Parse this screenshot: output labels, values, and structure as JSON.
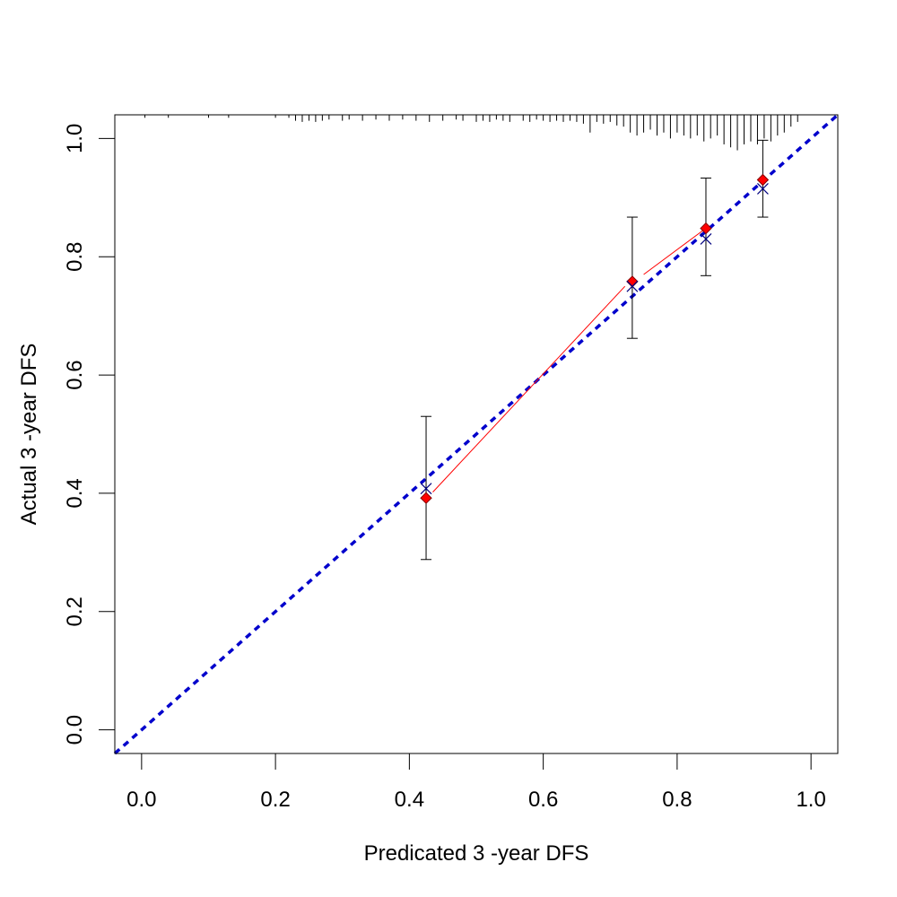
{
  "chart_data": {
    "type": "scatter",
    "title": "",
    "xlabel": "Predicated  3 -year  DFS",
    "ylabel": "Actual  3 -year  DFS",
    "xlim": [
      -0.04,
      1.04
    ],
    "ylim": [
      -0.04,
      1.04
    ],
    "x_ticks": [
      0.0,
      0.2,
      0.4,
      0.6,
      0.8,
      1.0
    ],
    "y_ticks": [
      0.0,
      0.2,
      0.4,
      0.6,
      0.8,
      1.0
    ],
    "x_tick_labels": [
      "0.0",
      "0.2",
      "0.4",
      "0.6",
      "0.8",
      "1.0"
    ],
    "y_tick_labels": [
      "0.0",
      "0.2",
      "0.4",
      "0.6",
      "0.8",
      "1.0"
    ],
    "grid": false,
    "legend": "none",
    "reference_line": {
      "slope": 1,
      "intercept": 0,
      "style": "dashed",
      "color": "#0000cc"
    },
    "observed": {
      "color": "#ff0000",
      "points": [
        {
          "x": 0.425,
          "y": 0.392,
          "lower": 0.288,
          "upper": 0.53
        },
        {
          "x": 0.733,
          "y": 0.758,
          "lower": 0.662,
          "upper": 0.867
        },
        {
          "x": 0.843,
          "y": 0.848,
          "lower": 0.768,
          "upper": 0.933
        },
        {
          "x": 0.928,
          "y": 0.93,
          "lower": 0.867,
          "upper": 0.997
        }
      ]
    },
    "corrected_line": {
      "color": "#ff0000",
      "segments": [
        [
          [
            0.435,
            0.402
          ],
          [
            0.722,
            0.75
          ]
        ],
        [
          [
            0.75,
            0.77
          ],
          [
            0.838,
            0.844
          ]
        ]
      ]
    },
    "bias_corrected": {
      "color": "#000080",
      "marker": "x",
      "points": [
        {
          "x": 0.425,
          "y": 0.408
        },
        {
          "x": 0.733,
          "y": 0.75
        },
        {
          "x": 0.843,
          "y": 0.83
        },
        {
          "x": 0.928,
          "y": 0.915
        }
      ]
    },
    "rug": {
      "color": "#000000",
      "note_values": "distribution of predicted values along top axis",
      "items": [
        {
          "x": 0.005,
          "h": 0.005
        },
        {
          "x": 0.04,
          "h": 0.005
        },
        {
          "x": 0.1,
          "h": 0.005
        },
        {
          "x": 0.13,
          "h": 0.005
        },
        {
          "x": 0.2,
          "h": 0.005
        },
        {
          "x": 0.22,
          "h": 0.005
        },
        {
          "x": 0.23,
          "h": 0.01
        },
        {
          "x": 0.24,
          "h": 0.012
        },
        {
          "x": 0.25,
          "h": 0.01
        },
        {
          "x": 0.26,
          "h": 0.012
        },
        {
          "x": 0.27,
          "h": 0.01
        },
        {
          "x": 0.28,
          "h": 0.008
        },
        {
          "x": 0.3,
          "h": 0.01
        },
        {
          "x": 0.31,
          "h": 0.008
        },
        {
          "x": 0.33,
          "h": 0.01
        },
        {
          "x": 0.35,
          "h": 0.008
        },
        {
          "x": 0.37,
          "h": 0.01
        },
        {
          "x": 0.39,
          "h": 0.008
        },
        {
          "x": 0.41,
          "h": 0.01
        },
        {
          "x": 0.43,
          "h": 0.012
        },
        {
          "x": 0.45,
          "h": 0.01
        },
        {
          "x": 0.47,
          "h": 0.008
        },
        {
          "x": 0.48,
          "h": 0.01
        },
        {
          "x": 0.5,
          "h": 0.012
        },
        {
          "x": 0.51,
          "h": 0.01
        },
        {
          "x": 0.52,
          "h": 0.012
        },
        {
          "x": 0.53,
          "h": 0.008
        },
        {
          "x": 0.54,
          "h": 0.01
        },
        {
          "x": 0.55,
          "h": 0.012
        },
        {
          "x": 0.57,
          "h": 0.01
        },
        {
          "x": 0.58,
          "h": 0.012
        },
        {
          "x": 0.59,
          "h": 0.008
        },
        {
          "x": 0.6,
          "h": 0.01
        },
        {
          "x": 0.61,
          "h": 0.012
        },
        {
          "x": 0.62,
          "h": 0.01
        },
        {
          "x": 0.63,
          "h": 0.012
        },
        {
          "x": 0.64,
          "h": 0.01
        },
        {
          "x": 0.65,
          "h": 0.012
        },
        {
          "x": 0.66,
          "h": 0.015
        },
        {
          "x": 0.67,
          "h": 0.03
        },
        {
          "x": 0.68,
          "h": 0.012
        },
        {
          "x": 0.69,
          "h": 0.015
        },
        {
          "x": 0.7,
          "h": 0.012
        },
        {
          "x": 0.71,
          "h": 0.018
        },
        {
          "x": 0.72,
          "h": 0.02
        },
        {
          "x": 0.73,
          "h": 0.03
        },
        {
          "x": 0.74,
          "h": 0.035
        },
        {
          "x": 0.75,
          "h": 0.03
        },
        {
          "x": 0.76,
          "h": 0.025
        },
        {
          "x": 0.77,
          "h": 0.035
        },
        {
          "x": 0.78,
          "h": 0.03
        },
        {
          "x": 0.79,
          "h": 0.04
        },
        {
          "x": 0.8,
          "h": 0.03
        },
        {
          "x": 0.81,
          "h": 0.035
        },
        {
          "x": 0.82,
          "h": 0.04
        },
        {
          "x": 0.83,
          "h": 0.035
        },
        {
          "x": 0.84,
          "h": 0.045
        },
        {
          "x": 0.85,
          "h": 0.04
        },
        {
          "x": 0.86,
          "h": 0.035
        },
        {
          "x": 0.87,
          "h": 0.05
        },
        {
          "x": 0.88,
          "h": 0.055
        },
        {
          "x": 0.89,
          "h": 0.06
        },
        {
          "x": 0.9,
          "h": 0.05
        },
        {
          "x": 0.91,
          "h": 0.045
        },
        {
          "x": 0.92,
          "h": 0.05
        },
        {
          "x": 0.93,
          "h": 0.04
        },
        {
          "x": 0.94,
          "h": 0.045
        },
        {
          "x": 0.95,
          "h": 0.035
        },
        {
          "x": 0.96,
          "h": 0.03
        },
        {
          "x": 0.97,
          "h": 0.02
        },
        {
          "x": 0.98,
          "h": 0.012
        }
      ]
    }
  }
}
